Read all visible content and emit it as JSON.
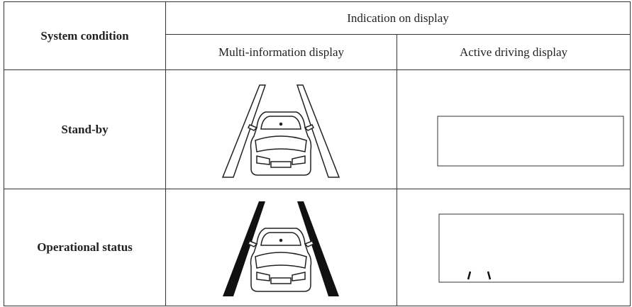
{
  "table": {
    "header": {
      "system_condition": "System condition",
      "indication": "Indication on display",
      "columns": [
        "Multi-information display",
        "Active driving display"
      ]
    },
    "rows": [
      "Stand-by",
      "Operational status"
    ]
  }
}
